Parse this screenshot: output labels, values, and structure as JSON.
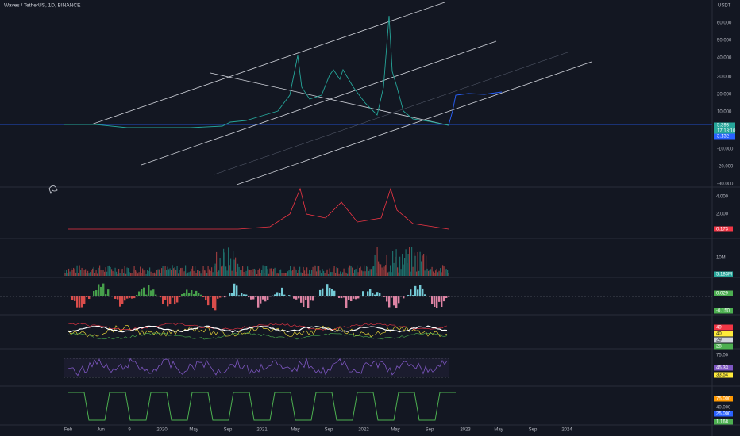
{
  "header": {
    "title": "Waves / TetherUS, 1D, BINANCE"
  },
  "price_axis": {
    "unit": "USDT",
    "labels": [
      "60.000",
      "50.000",
      "40.000",
      "30.000",
      "20.000",
      "10.000",
      "5.393",
      "17:18:10",
      "3.132",
      "-10.000",
      "-20.000",
      "-30.000"
    ]
  },
  "panes": [
    {
      "labels": [
        "4.000",
        "2.000",
        "0.173"
      ]
    },
    {
      "labels": [
        "10M",
        "5.183M"
      ]
    },
    {
      "labels": [
        "0.029",
        "-0.150"
      ]
    },
    {
      "labels": [
        "49",
        "40",
        "29",
        "28"
      ]
    },
    {
      "labels": [
        "75.00",
        "45.33",
        "33.54"
      ]
    },
    {
      "labels": [
        "75.000",
        "40.000",
        "25.000",
        "1.168"
      ]
    }
  ],
  "time_axis": {
    "labels": [
      "Feb",
      "Jun",
      "9",
      "2020",
      "May",
      "Sep",
      "2021",
      "May",
      "Sep",
      "2022",
      "May",
      "Sep",
      "2023",
      "May",
      "Sep",
      "2024"
    ]
  }
}
